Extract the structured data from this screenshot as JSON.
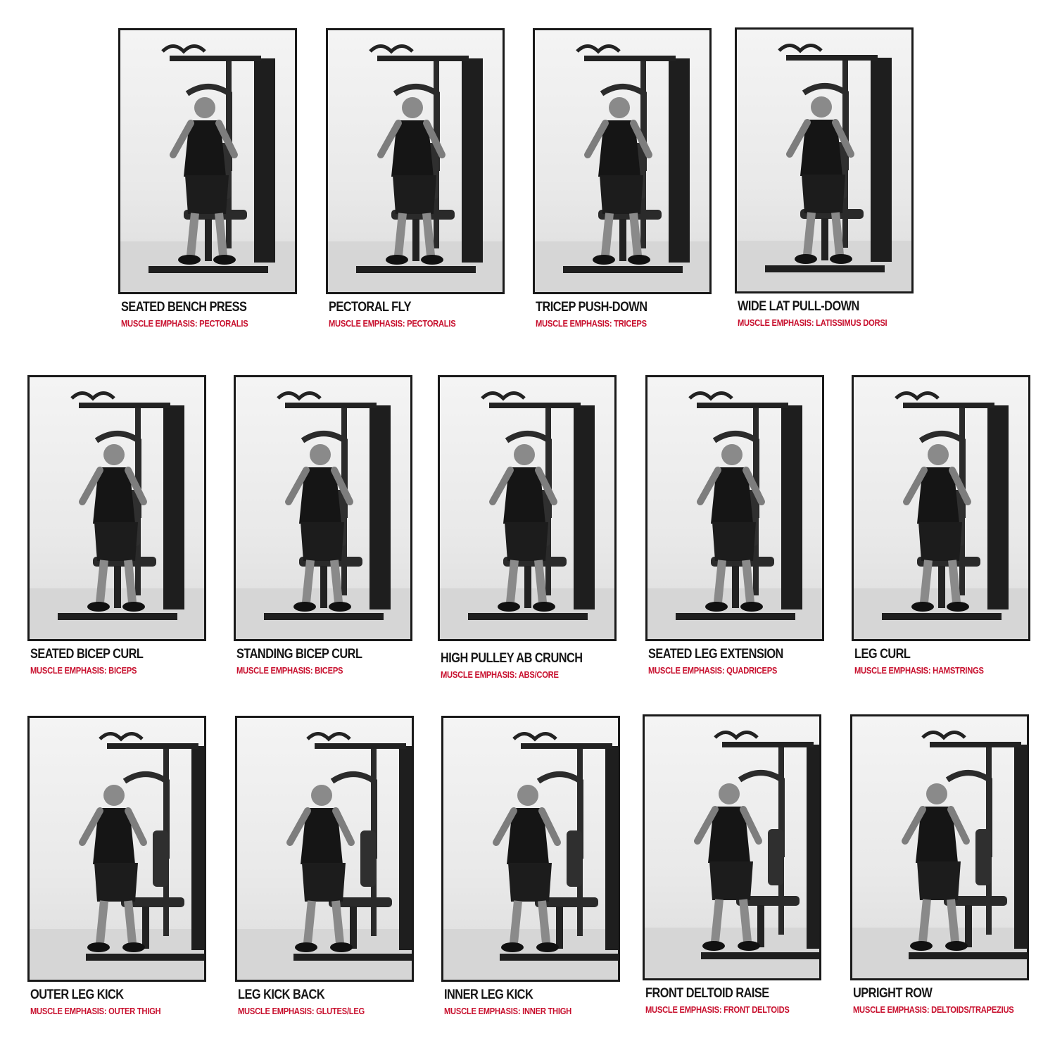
{
  "accent_color": "#c8102e",
  "exercises": [
    {
      "title": "SEATED BENCH PRESS",
      "emphasis": "MUSCLE EMPHASIS: PECTORALIS"
    },
    {
      "title": "PECTORAL FLY",
      "emphasis": "MUSCLE EMPHASIS: PECTORALIS"
    },
    {
      "title": "TRICEP PUSH-DOWN",
      "emphasis": "MUSCLE EMPHASIS: TRICEPS"
    },
    {
      "title": "WIDE LAT PULL-DOWN",
      "emphasis": "MUSCLE EMPHASIS: LATISSIMUS DORSI"
    },
    {
      "title": "SEATED BICEP CURL",
      "emphasis": "MUSCLE EMPHASIS: BICEPS"
    },
    {
      "title": "STANDING BICEP CURL",
      "emphasis": "MUSCLE EMPHASIS: BICEPS"
    },
    {
      "title": "HIGH PULLEY AB CRUNCH",
      "emphasis": "MUSCLE EMPHASIS: ABS/CORE"
    },
    {
      "title": "SEATED LEG EXTENSION",
      "emphasis": "MUSCLE EMPHASIS: QUADRICEPS"
    },
    {
      "title": "LEG CURL",
      "emphasis": "MUSCLE EMPHASIS: HAMSTRINGS"
    },
    {
      "title": "OUTER LEG KICK",
      "emphasis": "MUSCLE EMPHASIS: OUTER THIGH"
    },
    {
      "title": "LEG KICK BACK",
      "emphasis": "MUSCLE EMPHASIS: GLUTES/LEG"
    },
    {
      "title": "INNER LEG KICK",
      "emphasis": "MUSCLE EMPHASIS: INNER THIGH"
    },
    {
      "title": "FRONT DELTOID RAISE",
      "emphasis": "MUSCLE EMPHASIS: FRONT DELTOIDS"
    },
    {
      "title": "UPRIGHT ROW",
      "emphasis": "MUSCLE EMPHASIS: DELTOIDS/TRAPEZIUS"
    }
  ]
}
